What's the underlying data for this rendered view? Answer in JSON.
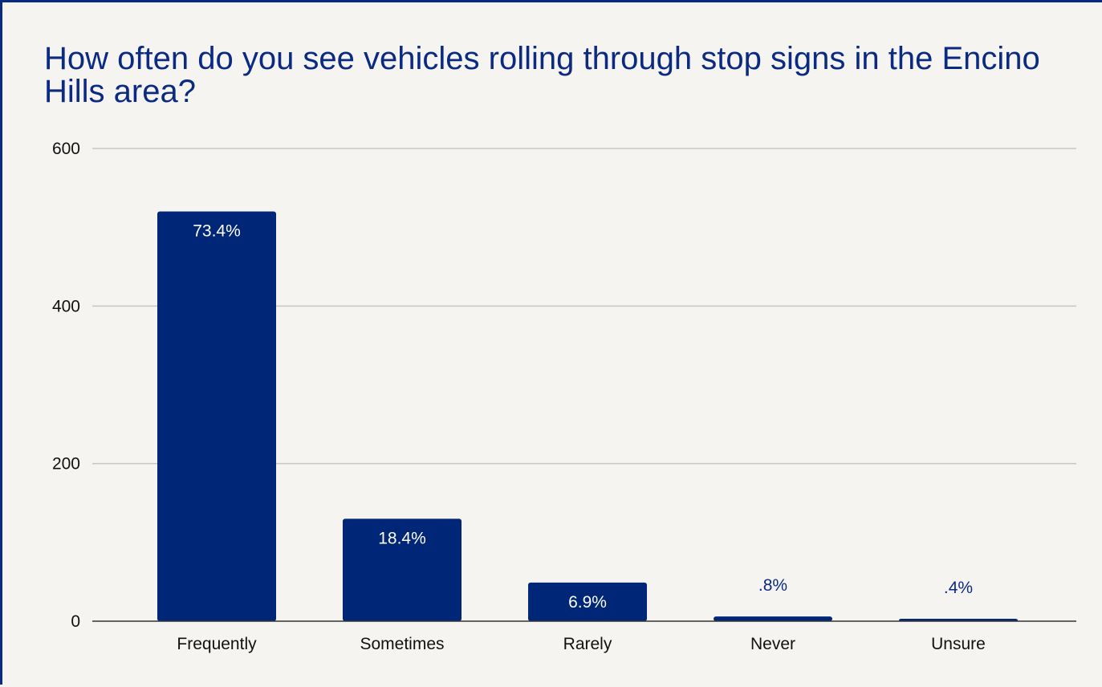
{
  "chart_data": {
    "type": "bar",
    "title": "How often do you see vehicles rolling through stop signs in the Encino Hills area?",
    "categories": [
      "Frequently",
      "Sometimes",
      "Rarely",
      "Never",
      "Unsure"
    ],
    "values": [
      520,
      130,
      49,
      6,
      3
    ],
    "data_labels": [
      "73.4%",
      "18.4%",
      "6.9%",
      ".8%",
      ".4%"
    ],
    "ylim": [
      0,
      600
    ],
    "yticks": [
      0,
      200,
      400,
      600
    ],
    "xlabel": "",
    "ylabel": "",
    "grid": true,
    "legend": "none",
    "colors": {
      "bar": "#002677",
      "title": "#0b2a82",
      "label_inside": "#ffffff",
      "label_outside": "#0b2a82",
      "grid": "#c6c6c6",
      "axis": "#333333"
    }
  }
}
